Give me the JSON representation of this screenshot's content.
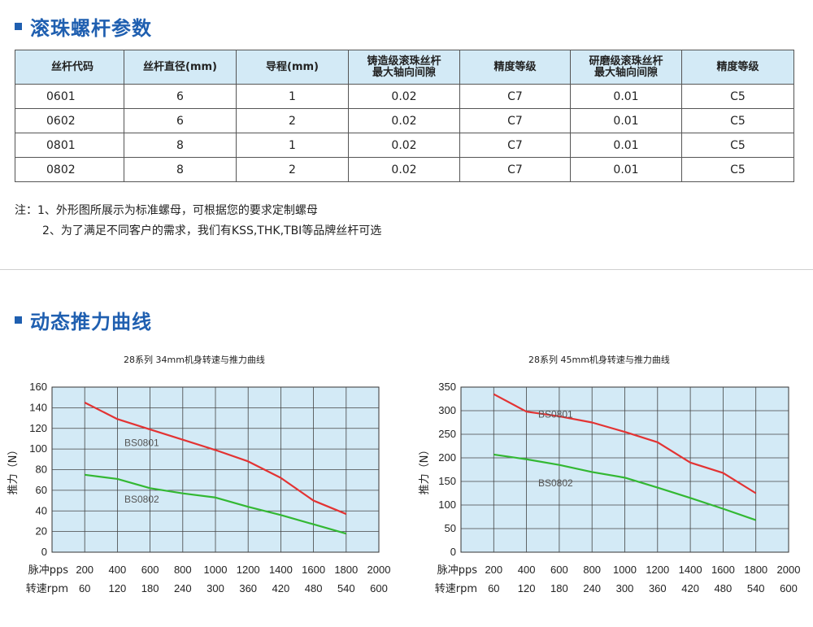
{
  "section1": {
    "title": "滚珠螺杆参数"
  },
  "table": {
    "headers": [
      [
        "丝杆代码"
      ],
      [
        "丝杆直径(mm)"
      ],
      [
        "导程(mm)"
      ],
      [
        "铸造级滚珠丝杆",
        "最大轴向间隙"
      ],
      [
        "精度等级"
      ],
      [
        "研磨级滚珠丝杆",
        "最大轴向间隙"
      ],
      [
        "精度等级"
      ]
    ],
    "rows": [
      [
        "0601",
        "6",
        "1",
        "0.02",
        "C7",
        "0.01",
        "C5"
      ],
      [
        "0602",
        "6",
        "2",
        "0.02",
        "C7",
        "0.01",
        "C5"
      ],
      [
        "0801",
        "8",
        "1",
        "0.02",
        "C7",
        "0.01",
        "C5"
      ],
      [
        "0802",
        "8",
        "2",
        "0.02",
        "C7",
        "0.01",
        "C5"
      ]
    ]
  },
  "notes": {
    "line1": "注：1、外形图所展示为标准螺母，可根据您的要求定制螺母",
    "line2": "2、为了满足不同客户的需求，我们有KSS,THK,TBI等品牌丝杆可选"
  },
  "section2": {
    "title": "动态推力曲线"
  },
  "chart_data": [
    {
      "type": "line",
      "title": "28系列 34mm机身转速与推力曲线",
      "ylabel": "推力（N）",
      "ylim": [
        0,
        160
      ],
      "yticks": [
        0,
        20,
        40,
        60,
        80,
        100,
        120,
        140,
        160
      ],
      "xlim": [
        0,
        2000
      ],
      "x_label_rows": [
        {
          "label": "脉冲pps",
          "ticks": [
            "200",
            "400",
            "600",
            "800",
            "1000",
            "1200",
            "1400",
            "1600",
            "1800",
            "2000"
          ]
        },
        {
          "label": "转速rpm",
          "ticks": [
            "60",
            "120",
            "180",
            "240",
            "300",
            "360",
            "420",
            "480",
            "540",
            "600"
          ]
        }
      ],
      "grid": true,
      "series": [
        {
          "name": "BS0801",
          "color": "#e33333",
          "x": [
            200,
            400,
            600,
            800,
            1000,
            1200,
            1400,
            1600,
            1800
          ],
          "y": [
            145,
            129,
            119,
            109,
            99,
            88,
            72,
            50,
            37
          ]
        },
        {
          "name": "BS0802",
          "color": "#33b833",
          "x": [
            200,
            400,
            600,
            800,
            1000,
            1200,
            1400,
            1600,
            1800
          ],
          "y": [
            75,
            71,
            62,
            57,
            53,
            44,
            36,
            27,
            18
          ]
        }
      ]
    },
    {
      "type": "line",
      "title": "28系列 45mm机身转速与推力曲线",
      "ylabel": "推力（N）",
      "ylim": [
        0,
        350
      ],
      "yticks": [
        0,
        50,
        100,
        150,
        200,
        250,
        300,
        350
      ],
      "xlim": [
        0,
        2000
      ],
      "x_label_rows": [
        {
          "label": "脉冲pps",
          "ticks": [
            "200",
            "400",
            "600",
            "800",
            "1000",
            "1200",
            "1400",
            "1600",
            "1800",
            "2000"
          ]
        },
        {
          "label": "转速rpm",
          "ticks": [
            "60",
            "120",
            "180",
            "240",
            "300",
            "360",
            "420",
            "480",
            "540",
            "600"
          ]
        }
      ],
      "grid": true,
      "series": [
        {
          "name": "BS0801",
          "color": "#e33333",
          "x": [
            200,
            400,
            600,
            800,
            1000,
            1200,
            1400,
            1600,
            1800
          ],
          "y": [
            335,
            298,
            288,
            275,
            255,
            233,
            190,
            168,
            125
          ]
        },
        {
          "name": "BS0802",
          "color": "#33b833",
          "x": [
            200,
            400,
            600,
            800,
            1000,
            1200,
            1400,
            1600,
            1800
          ],
          "y": [
            207,
            197,
            185,
            170,
            158,
            137,
            115,
            92,
            68
          ]
        }
      ]
    }
  ]
}
